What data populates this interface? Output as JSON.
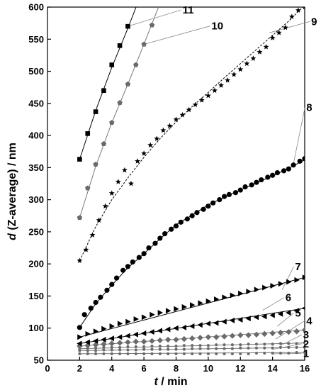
{
  "chart_data": {
    "type": "scatter",
    "xlabel_italic": "t",
    "xlabel_rest": " / min",
    "ylabel_italic": "d",
    "ylabel_rest": " (Z-average) / nm",
    "xlim": [
      0,
      16
    ],
    "ylim": [
      50,
      600
    ],
    "xticks": [
      0,
      2,
      4,
      6,
      8,
      10,
      12,
      14,
      16
    ],
    "yticks": [
      50,
      100,
      150,
      200,
      250,
      300,
      350,
      400,
      450,
      500,
      550,
      600
    ],
    "series": [
      {
        "name": "1",
        "marker": "dot",
        "fit": "solid",
        "x": [
          2,
          2.5,
          3,
          3.5,
          4,
          4.5,
          5,
          5.5,
          6,
          6.5,
          7,
          7.5,
          8,
          8.5,
          9,
          9.5,
          10,
          10.5,
          11,
          11.5,
          12,
          12.5,
          13,
          13.5,
          14,
          14.5,
          15,
          15.5,
          16
        ],
        "y": [
          60,
          60,
          60,
          60,
          60,
          60,
          60,
          60,
          60,
          60,
          60,
          60,
          60,
          60,
          60,
          60,
          60,
          60,
          60,
          60,
          60,
          60,
          61,
          61,
          61,
          61,
          61,
          62,
          62
        ],
        "fit_points": [
          [
            2,
            60
          ],
          [
            16,
            62
          ]
        ],
        "label_anchor": [
          14,
          60
        ],
        "label_pos": [
          15.9,
          55
        ]
      },
      {
        "name": "2",
        "marker": "dot",
        "fit": "solid",
        "x": [
          2,
          2.5,
          3,
          3.5,
          4,
          4.5,
          5,
          5.5,
          6,
          6.5,
          7,
          7.5,
          8,
          8.5,
          9,
          9.5,
          10,
          10.5,
          11,
          11.5,
          12,
          12.5,
          13,
          13.5,
          14,
          14.5,
          15,
          15.5,
          16
        ],
        "y": [
          65,
          65,
          65,
          66,
          66,
          66,
          66,
          66,
          67,
          67,
          67,
          67,
          67,
          67,
          68,
          68,
          68,
          68,
          68,
          68,
          69,
          69,
          69,
          69,
          69,
          70,
          70,
          70,
          70
        ],
        "fit_points": [
          [
            2,
            65
          ],
          [
            16,
            70
          ]
        ],
        "label_anchor": [
          14,
          67
        ],
        "label_pos": [
          15.9,
          70
        ]
      },
      {
        "name": "3",
        "marker": "dot",
        "fit": "solid",
        "x": [
          2,
          2.5,
          3,
          3.5,
          4,
          4.5,
          5,
          5.5,
          6,
          6.5,
          7,
          7.5,
          8,
          8.5,
          9,
          9.5,
          10,
          10.5,
          11,
          11.5,
          12,
          12.5,
          13,
          13.5,
          14,
          14.5,
          15,
          15.5,
          16
        ],
        "y": [
          68,
          69,
          69,
          70,
          70,
          70,
          71,
          71,
          71,
          72,
          72,
          72,
          72,
          73,
          73,
          73,
          73,
          74,
          74,
          74,
          74,
          75,
          75,
          75,
          75,
          76,
          76,
          76,
          77
        ],
        "fit_points": [
          [
            2,
            68
          ],
          [
            16,
            77
          ]
        ],
        "label_anchor": [
          14.5,
          73
        ],
        "label_pos": [
          15.9,
          84
        ]
      },
      {
        "name": "4",
        "marker": "diamond",
        "fit": "solid",
        "x": [
          2,
          2.5,
          3,
          3.5,
          4,
          4.5,
          5,
          5.5,
          6,
          6.5,
          7,
          7.5,
          8,
          8.5,
          9,
          9.5,
          10,
          10.5,
          11,
          11.5,
          12,
          12.5,
          13,
          13.5,
          14,
          14.5,
          15,
          15.5,
          16
        ],
        "y": [
          72,
          73,
          74,
          75,
          76,
          77,
          78,
          79,
          79,
          80,
          81,
          82,
          82,
          83,
          84,
          85,
          86,
          86,
          87,
          88,
          89,
          89,
          90,
          91,
          92,
          93,
          94,
          95,
          97
        ],
        "fit_points": [
          [
            2,
            72
          ],
          [
            16,
            97
          ]
        ],
        "label_anchor": [
          14.2,
          83
        ],
        "label_pos": [
          16.1,
          106
        ]
      },
      {
        "name": "5",
        "marker": "tri-left",
        "fit": "solid",
        "x": [
          2,
          2.5,
          3,
          3.5,
          4,
          4.5,
          5,
          5.5,
          6,
          6.5,
          7,
          7.5,
          8,
          8.5,
          9,
          9.5,
          10,
          10.5,
          11,
          11.5,
          12,
          12.5,
          13,
          13.5,
          14,
          14.5,
          15,
          15.5,
          16
        ],
        "y": [
          76,
          78,
          80,
          82,
          84,
          86,
          88,
          90,
          92,
          94,
          96,
          98,
          100,
          101,
          103,
          105,
          107,
          108,
          110,
          112,
          113,
          115,
          117,
          118,
          120,
          122,
          124,
          127,
          131
        ],
        "fit_points": [
          [
            2,
            76
          ],
          [
            16,
            131
          ]
        ],
        "label_anchor": [
          14.3,
          103
        ],
        "label_pos": [
          15.4,
          118
        ]
      },
      {
        "name": "6",
        "marker": "tri-right",
        "fit": "solid",
        "x": [
          2,
          2.5,
          3,
          3.5,
          4,
          4.5,
          5,
          5.5,
          6,
          6.5,
          7,
          7.5,
          8,
          8.5,
          9,
          9.5,
          10,
          10.5,
          11,
          11.5,
          12,
          12.5,
          13,
          13.5,
          14,
          14.5,
          15,
          15.5,
          16
        ],
        "y": [
          86,
          91,
          95,
          99,
          103,
          107,
          110,
          114,
          117,
          121,
          124,
          127,
          130,
          133,
          136,
          139,
          142,
          145,
          148,
          151,
          154,
          157,
          160,
          163,
          166,
          169,
          172,
          175,
          179
        ],
        "fit_points": [
          [
            2,
            86
          ],
          [
            16,
            179
          ]
        ],
        "label_anchor": [
          13.4,
          128
        ],
        "label_pos": [
          14.8,
          142
        ]
      },
      {
        "name": "7",
        "marker": "none",
        "fit": "none",
        "x": [],
        "y": [],
        "fit_points": [],
        "label_anchor": [
          14.6,
          160
        ],
        "label_pos": [
          15.4,
          190
        ]
      },
      {
        "name": "8",
        "marker": "circle",
        "fit": "solid",
        "x": [
          2,
          2.3,
          2.7,
          3,
          3.3,
          3.7,
          4,
          4.3,
          4.7,
          5,
          5.3,
          5.7,
          6,
          6.3,
          6.7,
          7,
          7.3,
          7.7,
          8,
          8.3,
          8.7,
          9,
          9.3,
          9.7,
          10,
          10.3,
          10.7,
          11,
          11.3,
          11.7,
          12,
          12.3,
          12.7,
          13,
          13.3,
          13.7,
          14,
          14.3,
          14.7,
          15,
          15.3,
          15.7,
          16
        ],
        "y": [
          101,
          121,
          131,
          140,
          148,
          159,
          168,
          178,
          190,
          196,
          203,
          210,
          216,
          225,
          232,
          240,
          247,
          254,
          259,
          265,
          270,
          275,
          280,
          285,
          290,
          295,
          300,
          305,
          308,
          311,
          315,
          320,
          323,
          327,
          331,
          335,
          338,
          342,
          345,
          348,
          354,
          360,
          364
        ],
        "fit_points": [
          [
            2,
            101
          ],
          [
            3,
            138
          ],
          [
            4,
            167
          ],
          [
            5,
            194
          ],
          [
            6,
            216
          ],
          [
            7,
            239
          ],
          [
            8,
            261
          ],
          [
            9,
            276
          ],
          [
            10,
            292
          ],
          [
            11,
            304
          ],
          [
            12,
            315
          ],
          [
            13,
            326
          ],
          [
            14,
            337
          ],
          [
            15,
            349
          ],
          [
            16,
            362
          ]
        ],
        "label_anchor": [
          15.3,
          356
        ],
        "label_pos": [
          16.1,
          438
        ]
      },
      {
        "name": "9",
        "marker": "star",
        "fit": "dashed",
        "x": [
          2,
          2.4,
          2.8,
          3.2,
          3.6,
          4,
          4.4,
          4.8,
          5.2,
          5.6,
          6,
          6.4,
          6.8,
          7.2,
          7.6,
          8,
          8.4,
          8.8,
          9.2,
          9.6,
          10,
          10.4,
          10.8,
          11.2,
          11.6,
          12,
          12.4,
          12.8,
          13.2,
          13.6,
          14,
          14.4,
          14.8,
          15.2,
          15.6,
          16
        ],
        "y": [
          205,
          222,
          245,
          268,
          290,
          310,
          328,
          346,
          325,
          360,
          372,
          385,
          395,
          408,
          415,
          425,
          432,
          440,
          448,
          455,
          462,
          470,
          478,
          486,
          495,
          503,
          512,
          520,
          530,
          538,
          552,
          560,
          568,
          585,
          595,
          600
        ],
        "fit_points": [
          [
            2,
            205
          ],
          [
            3,
            258
          ],
          [
            4,
            300
          ],
          [
            5,
            334
          ],
          [
            6,
            366
          ],
          [
            7,
            395
          ],
          [
            8,
            421
          ],
          [
            9,
            445
          ],
          [
            10,
            467
          ],
          [
            11,
            490
          ],
          [
            12,
            512
          ],
          [
            13,
            534
          ],
          [
            14,
            556
          ],
          [
            15,
            578
          ],
          [
            16,
            603
          ]
        ],
        "label_anchor": [
          13.8,
          560
        ],
        "label_pos": [
          16.4,
          572
        ]
      },
      {
        "name": "10",
        "marker": "pentagon",
        "fit": "solid",
        "x": [
          2,
          2.5,
          3,
          3.5,
          4,
          4.5,
          5,
          5.5,
          6,
          6.5,
          7
        ],
        "y": [
          272,
          318,
          355,
          387,
          420,
          451,
          480,
          510,
          542,
          572,
          605
        ],
        "fit_points": [
          [
            2,
            272
          ],
          [
            3,
            352
          ],
          [
            4,
            420
          ],
          [
            5,
            480
          ],
          [
            6,
            542
          ],
          [
            7,
            606
          ]
        ],
        "label_anchor": [
          6,
          542
        ],
        "label_pos": [
          10.2,
          565
        ]
      },
      {
        "name": "11",
        "marker": "square",
        "fit": "solid",
        "x": [
          2,
          2.5,
          3,
          3.5,
          4,
          4.5,
          5
        ],
        "y": [
          363,
          403,
          437,
          470,
          510,
          540,
          570
        ],
        "fit_points": [
          [
            2,
            363
          ],
          [
            3,
            439
          ],
          [
            4,
            506
          ],
          [
            5,
            567
          ],
          [
            5.6,
            606
          ]
        ],
        "label_anchor": [
          5,
          570
        ],
        "label_pos": [
          8.4,
          590
        ]
      }
    ]
  }
}
